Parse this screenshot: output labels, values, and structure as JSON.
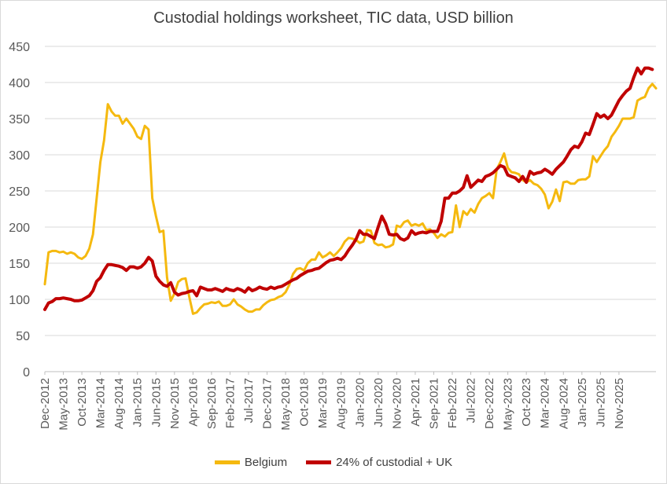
{
  "chart_data": {
    "type": "line",
    "title": "Custodial holdings worksheet, TIC data, USD billion",
    "xlabel": "",
    "ylabel": "",
    "ylim": [
      0,
      450
    ],
    "yticks": [
      0,
      50,
      100,
      150,
      200,
      250,
      300,
      350,
      400,
      450
    ],
    "grid": true,
    "legend_position": "bottom",
    "x_tick_labels": [
      "Dec-2012",
      "May-2013",
      "Oct-2013",
      "Mar-2014",
      "Aug-2014",
      "Jan-2015",
      "Jun-2015",
      "Nov-2015",
      "Apr-2016",
      "Sep-2016",
      "Feb-2017",
      "Jul-2017",
      "Dec-2017",
      "May-2018",
      "Oct-2018",
      "Mar-2019",
      "Aug-2019",
      "Jan-2020",
      "Jun-2020",
      "Nov-2020",
      "Apr-2021",
      "Sep-2021",
      "Feb-2022",
      "Jul-2022",
      "Dec-2022",
      "May-2023",
      "Oct-2023",
      "Mar-2024",
      "Aug-2024",
      "Jan-2025",
      "Jun-2025",
      "Nov-2025"
    ],
    "x_start": "Dec-2012",
    "series": [
      {
        "name": "Belgium",
        "color": "#f5b90f",
        "values": [
          121,
          165,
          167,
          167,
          165,
          166,
          163,
          165,
          163,
          158,
          156,
          160,
          170,
          190,
          240,
          290,
          320,
          370,
          360,
          354,
          354,
          343,
          350,
          343,
          336,
          325,
          322,
          340,
          335,
          240,
          215,
          193,
          195,
          130,
          98,
          108,
          124,
          128,
          129,
          103,
          80,
          82,
          88,
          93,
          94,
          96,
          95,
          97,
          91,
          91,
          93,
          100,
          93,
          90,
          86,
          83,
          83,
          86,
          86,
          92,
          96,
          99,
          100,
          103,
          105,
          110,
          120,
          135,
          142,
          143,
          140,
          150,
          155,
          155,
          165,
          158,
          161,
          165,
          160,
          165,
          171,
          180,
          185,
          184,
          182,
          178,
          180,
          196,
          195,
          178,
          175,
          176,
          172,
          173,
          176,
          202,
          200,
          207,
          209,
          202,
          204,
          202,
          205,
          196,
          197,
          192,
          185,
          190,
          187,
          192,
          193,
          230,
          200,
          222,
          217,
          225,
          220,
          232,
          240,
          243,
          247,
          240,
          280,
          290,
          302,
          282,
          276,
          275,
          273,
          265,
          262,
          265,
          260,
          258,
          253,
          245,
          226,
          235,
          252,
          236,
          262,
          263,
          260,
          260,
          265,
          266,
          266,
          270,
          298,
          290,
          298,
          306,
          312,
          325,
          332,
          340,
          350,
          350,
          350,
          352,
          375,
          378,
          380,
          392,
          398,
          392
        ]
      },
      {
        "name": "24% of custodial + UK",
        "color": "#c00000",
        "values": [
          86,
          95,
          97,
          101,
          101,
          102,
          101,
          100,
          98,
          98,
          99,
          102,
          105,
          112,
          125,
          130,
          140,
          148,
          148,
          147,
          146,
          144,
          140,
          145,
          145,
          143,
          145,
          150,
          158,
          153,
          132,
          125,
          120,
          118,
          123,
          110,
          106,
          108,
          109,
          111,
          112,
          105,
          117,
          115,
          113,
          113,
          115,
          113,
          111,
          115,
          113,
          112,
          115,
          113,
          110,
          116,
          112,
          114,
          117,
          115,
          114,
          117,
          115,
          117,
          118,
          121,
          124,
          127,
          129,
          133,
          136,
          139,
          140,
          142,
          143,
          147,
          151,
          154,
          155,
          157,
          155,
          160,
          168,
          175,
          183,
          195,
          190,
          190,
          187,
          184,
          200,
          215,
          205,
          190,
          189,
          190,
          184,
          182,
          185,
          195,
          190,
          192,
          193,
          192,
          194,
          194,
          194,
          208,
          240,
          240,
          247,
          247,
          250,
          255,
          271,
          255,
          260,
          265,
          263,
          270,
          272,
          275,
          280,
          285,
          283,
          272,
          270,
          268,
          263,
          270,
          262,
          277,
          273,
          275,
          276,
          280,
          277,
          273,
          280,
          285,
          290,
          298,
          307,
          312,
          310,
          318,
          330,
          328,
          342,
          357,
          352,
          355,
          350,
          355,
          365,
          375,
          382,
          388,
          392,
          407,
          420,
          412,
          420,
          420,
          418
        ]
      }
    ]
  }
}
